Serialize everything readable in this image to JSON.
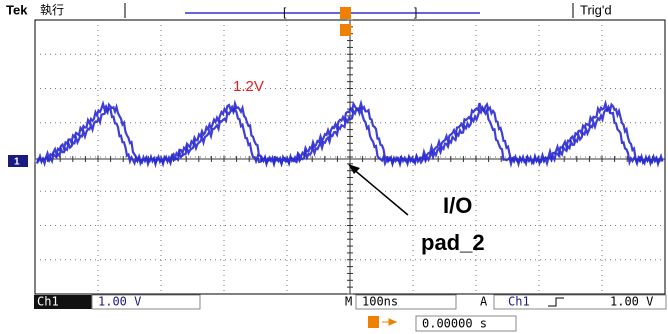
{
  "header": {
    "brand": "Tek",
    "mode": "執行",
    "status": "Trig'd"
  },
  "screen": {
    "channel_marker": "1",
    "peak_label": "1.2V",
    "annotation": {
      "line1": "I/O",
      "line2": "pad_2"
    }
  },
  "footer": {
    "channel": "Ch1",
    "volts_per_div": "1.00 V",
    "time_prefix": "M",
    "time_per_div": "100ns",
    "trigger_prefix": "A",
    "trigger_source": "Ch1",
    "trigger_level": "1.00 V",
    "trigger_position": "0.00000 s"
  }
}
